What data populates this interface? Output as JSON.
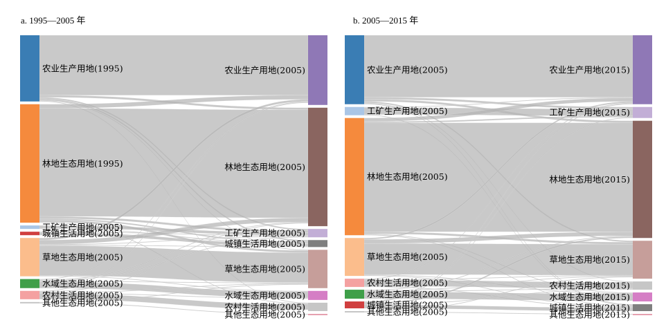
{
  "chart_data": [
    {
      "type": "sankey",
      "title": "a. 1995—2005 年",
      "source_nodes": [
        {
          "id": "s_agri",
          "label": "农业生产用地(1995)",
          "value": 95,
          "color": "#3a7db4"
        },
        {
          "id": "s_forest",
          "label": "林地生态用地(1995)",
          "value": 170,
          "color": "#f58a3d"
        },
        {
          "id": "s_ind",
          "label": "工矿生产用地(2005)",
          "value": 5,
          "color": "#aac6e6"
        },
        {
          "id": "s_urban",
          "label": "城镇生活用地(2005)",
          "value": 5,
          "color": "#d03f3f"
        },
        {
          "id": "s_grass",
          "label": "草地生态用地(2005)",
          "value": 55,
          "color": "#fbbd8c"
        },
        {
          "id": "s_water",
          "label": "水域生态用地(2005)",
          "value": 13,
          "color": "#3f9f49"
        },
        {
          "id": "s_rural",
          "label": "农村生活用地(2005)",
          "value": 12,
          "color": "#f4a1a1"
        },
        {
          "id": "s_other",
          "label": "其他生态用地(2005)",
          "value": 2,
          "color": "#c6c6c6"
        }
      ],
      "target_nodes": [
        {
          "id": "t_agri",
          "label": "农业生产用地(2005)",
          "value": 100,
          "color": "#8f78b6"
        },
        {
          "id": "t_forest",
          "label": "林地生态用地(2005)",
          "value": 170,
          "color": "#8a6560"
        },
        {
          "id": "t_ind",
          "label": "工矿生产用地(2005)",
          "value": 12,
          "color": "#c2aed6"
        },
        {
          "id": "t_urban",
          "label": "城镇生活用地(2005)",
          "value": 10,
          "color": "#7f7f7f"
        },
        {
          "id": "t_grass",
          "label": "草地生态用地(2005)",
          "value": 55,
          "color": "#c69e9a"
        },
        {
          "id": "t_water",
          "label": "水域生态用地(2005)",
          "value": 13,
          "color": "#d57ec5"
        },
        {
          "id": "t_rural",
          "label": "农村生活用地(2005)",
          "value": 12,
          "color": "#c6c6c6"
        },
        {
          "id": "t_other",
          "label": "其他生态用地(2005)",
          "value": 2,
          "color": "#e5a0b0"
        }
      ],
      "links": [
        {
          "source": "s_agri",
          "target": "t_agri",
          "value": 86
        },
        {
          "source": "s_agri",
          "target": "t_forest",
          "value": 3
        },
        {
          "source": "s_agri",
          "target": "t_ind",
          "value": 2
        },
        {
          "source": "s_agri",
          "target": "t_urban",
          "value": 2
        },
        {
          "source": "s_agri",
          "target": "t_grass",
          "value": 1
        },
        {
          "source": "s_agri",
          "target": "t_rural",
          "value": 1
        },
        {
          "source": "s_forest",
          "target": "t_agri",
          "value": 6
        },
        {
          "source": "s_forest",
          "target": "t_forest",
          "value": 155
        },
        {
          "source": "s_forest",
          "target": "t_ind",
          "value": 3
        },
        {
          "source": "s_forest",
          "target": "t_urban",
          "value": 2
        },
        {
          "source": "s_forest",
          "target": "t_grass",
          "value": 3
        },
        {
          "source": "s_forest",
          "target": "t_rural",
          "value": 1
        },
        {
          "source": "s_ind",
          "target": "t_ind",
          "value": 4
        },
        {
          "source": "s_ind",
          "target": "t_urban",
          "value": 1
        },
        {
          "source": "s_urban",
          "target": "t_urban",
          "value": 4
        },
        {
          "source": "s_urban",
          "target": "t_ind",
          "value": 1
        },
        {
          "source": "s_grass",
          "target": "t_agri",
          "value": 3
        },
        {
          "source": "s_grass",
          "target": "t_forest",
          "value": 6
        },
        {
          "source": "s_grass",
          "target": "t_ind",
          "value": 1
        },
        {
          "source": "s_grass",
          "target": "t_urban",
          "value": 1
        },
        {
          "source": "s_grass",
          "target": "t_grass",
          "value": 43
        },
        {
          "source": "s_grass",
          "target": "t_water",
          "value": 1
        },
        {
          "source": "s_water",
          "target": "t_agri",
          "value": 1
        },
        {
          "source": "s_water",
          "target": "t_forest",
          "value": 1
        },
        {
          "source": "s_water",
          "target": "t_ind",
          "value": 1
        },
        {
          "source": "s_water",
          "target": "t_grass",
          "value": 1
        },
        {
          "source": "s_water",
          "target": "t_water",
          "value": 9
        },
        {
          "source": "s_rural",
          "target": "t_agri",
          "value": 1
        },
        {
          "source": "s_rural",
          "target": "t_forest",
          "value": 1
        },
        {
          "source": "s_rural",
          "target": "t_grass",
          "value": 1
        },
        {
          "source": "s_rural",
          "target": "t_water",
          "value": 1
        },
        {
          "source": "s_rural",
          "target": "t_rural",
          "value": 8
        },
        {
          "source": "s_other",
          "target": "t_grass",
          "value": 1
        },
        {
          "source": "s_other",
          "target": "t_other",
          "value": 1
        }
      ]
    },
    {
      "type": "sankey",
      "title": "b. 2005—2015 年",
      "source_nodes": [
        {
          "id": "s_agri",
          "label": "农业生产用地(2005)",
          "value": 100,
          "color": "#3a7db4"
        },
        {
          "id": "s_ind",
          "label": "工矿生产用地(2005)",
          "value": 12,
          "color": "#aac6e6"
        },
        {
          "id": "s_forest",
          "label": "林地生态用地(2005)",
          "value": 170,
          "color": "#f58a3d"
        },
        {
          "id": "s_grass",
          "label": "草地生态用地(2005)",
          "value": 55,
          "color": "#fbbd8c"
        },
        {
          "id": "s_rural",
          "label": "农村生活用地(2005)",
          "value": 12,
          "color": "#f4a1a1"
        },
        {
          "id": "s_water",
          "label": "水域生态用地(2005)",
          "value": 13,
          "color": "#3f9f49"
        },
        {
          "id": "s_urban",
          "label": "城镇生活用地(2005)",
          "value": 10,
          "color": "#d03f3f"
        },
        {
          "id": "s_other",
          "label": "其他生态用地(2005)",
          "value": 2,
          "color": "#c6c6c6"
        }
      ],
      "target_nodes": [
        {
          "id": "t_agri",
          "label": "农业生产用地(2015)",
          "value": 100,
          "color": "#8f78b6"
        },
        {
          "id": "t_ind",
          "label": "工矿生产用地(2015)",
          "value": 16,
          "color": "#c2aed6"
        },
        {
          "id": "t_forest",
          "label": "林地生态用地(2015)",
          "value": 170,
          "color": "#8a6560"
        },
        {
          "id": "t_grass",
          "label": "草地生态用地(2015)",
          "value": 55,
          "color": "#c69e9a"
        },
        {
          "id": "t_rural",
          "label": "农村生活用地(2015)",
          "value": 12,
          "color": "#c6c6c6"
        },
        {
          "id": "t_water",
          "label": "水域生态用地(2015)",
          "value": 13,
          "color": "#d57ec5"
        },
        {
          "id": "t_urban",
          "label": "城镇生活用地(2015)",
          "value": 10,
          "color": "#7f7f7f"
        },
        {
          "id": "t_other",
          "label": "其他生态用地(2015)",
          "value": 2,
          "color": "#e5a0b0"
        }
      ],
      "links": [
        {
          "source": "s_agri",
          "target": "t_agri",
          "value": 90
        },
        {
          "source": "s_agri",
          "target": "t_ind",
          "value": 3
        },
        {
          "source": "s_agri",
          "target": "t_forest",
          "value": 3
        },
        {
          "source": "s_agri",
          "target": "t_grass",
          "value": 2
        },
        {
          "source": "s_agri",
          "target": "t_rural",
          "value": 1
        },
        {
          "source": "s_agri",
          "target": "t_urban",
          "value": 1
        },
        {
          "source": "s_ind",
          "target": "t_agri",
          "value": 1
        },
        {
          "source": "s_ind",
          "target": "t_ind",
          "value": 10
        },
        {
          "source": "s_ind",
          "target": "t_urban",
          "value": 1
        },
        {
          "source": "s_forest",
          "target": "t_agri",
          "value": 5
        },
        {
          "source": "s_forest",
          "target": "t_ind",
          "value": 2
        },
        {
          "source": "s_forest",
          "target": "t_forest",
          "value": 158
        },
        {
          "source": "s_forest",
          "target": "t_grass",
          "value": 3
        },
        {
          "source": "s_forest",
          "target": "t_water",
          "value": 1
        },
        {
          "source": "s_forest",
          "target": "t_urban",
          "value": 1
        },
        {
          "source": "s_grass",
          "target": "t_agri",
          "value": 2
        },
        {
          "source": "s_grass",
          "target": "t_forest",
          "value": 6
        },
        {
          "source": "s_grass",
          "target": "t_grass",
          "value": 45
        },
        {
          "source": "s_grass",
          "target": "t_water",
          "value": 1
        },
        {
          "source": "s_grass",
          "target": "t_urban",
          "value": 1
        },
        {
          "source": "s_rural",
          "target": "t_agri",
          "value": 1
        },
        {
          "source": "s_rural",
          "target": "t_grass",
          "value": 1
        },
        {
          "source": "s_rural",
          "target": "t_rural",
          "value": 9
        },
        {
          "source": "s_rural",
          "target": "t_urban",
          "value": 1
        },
        {
          "source": "s_water",
          "target": "t_forest",
          "value": 1
        },
        {
          "source": "s_water",
          "target": "t_grass",
          "value": 1
        },
        {
          "source": "s_water",
          "target": "t_water",
          "value": 10
        },
        {
          "source": "s_water",
          "target": "t_rural",
          "value": 1
        },
        {
          "source": "s_urban",
          "target": "t_agri",
          "value": 1
        },
        {
          "source": "s_urban",
          "target": "t_ind",
          "value": 1
        },
        {
          "source": "s_urban",
          "target": "t_forest",
          "value": 2
        },
        {
          "source": "s_urban",
          "target": "t_rural",
          "value": 1
        },
        {
          "source": "s_urban",
          "target": "t_urban",
          "value": 5
        },
        {
          "source": "s_other",
          "target": "t_grass",
          "value": 1
        },
        {
          "source": "s_other",
          "target": "t_other",
          "value": 1
        }
      ]
    }
  ]
}
